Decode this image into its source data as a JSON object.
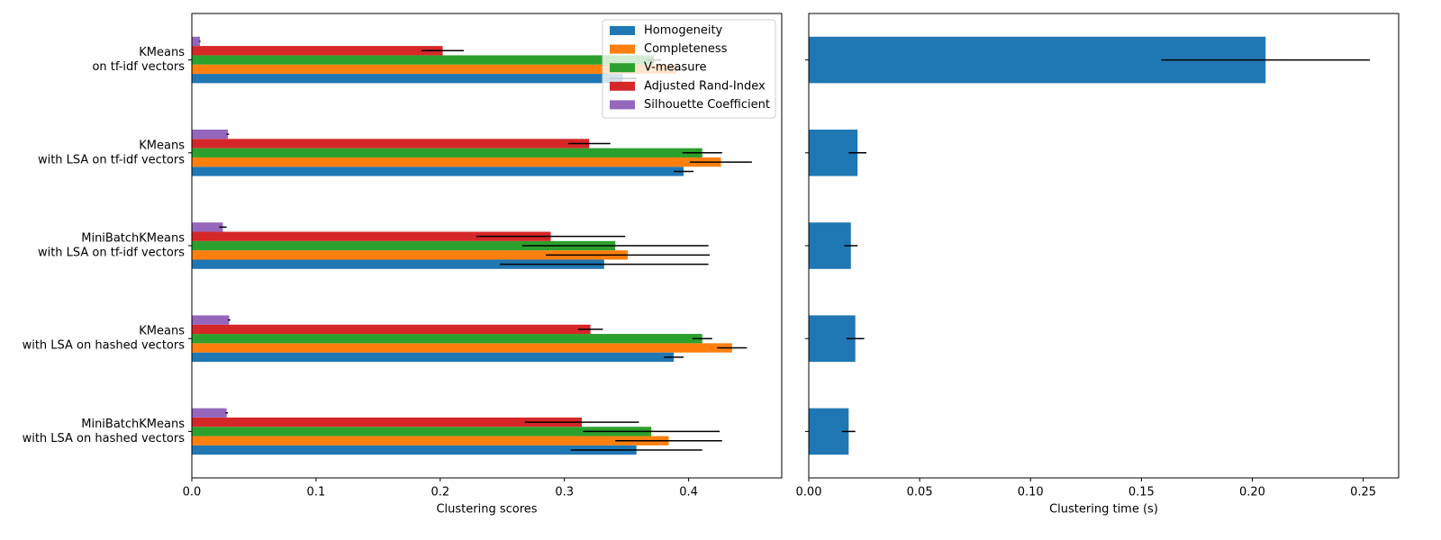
{
  "chart_data": [
    {
      "type": "barh",
      "categories": [
        [
          "KMeans",
          "on tf-idf vectors"
        ],
        [
          "KMeans",
          "with LSA on tf-idf vectors"
        ],
        [
          "MiniBatchKMeans",
          "with LSA on tf-idf vectors"
        ],
        [
          "KMeans",
          "with LSA on hashed vectors"
        ],
        [
          "MiniBatchKMeans",
          "with LSA on hashed vectors"
        ]
      ],
      "series": [
        {
          "name": "Homogeneity",
          "color": "#1f77b4",
          "values": [
            0.347,
            0.396,
            0.332,
            0.388,
            0.358
          ],
          "errors": [
            0.011,
            0.008,
            0.084,
            0.008,
            0.053
          ]
        },
        {
          "name": "Completeness",
          "color": "#ff7f0e",
          "values": [
            0.39,
            0.426,
            0.351,
            0.435,
            0.384
          ],
          "errors": [
            0.008,
            0.025,
            0.066,
            0.012,
            0.043
          ]
        },
        {
          "name": "V-measure",
          "color": "#2ca02c",
          "values": [
            0.372,
            0.411,
            0.341,
            0.411,
            0.37
          ],
          "errors": [
            0.006,
            0.016,
            0.075,
            0.008,
            0.055
          ]
        },
        {
          "name": "Adjusted Rand-Index",
          "color": "#d62728",
          "values": [
            0.202,
            0.32,
            0.289,
            0.321,
            0.314
          ],
          "errors": [
            0.017,
            0.017,
            0.06,
            0.01,
            0.046
          ]
        },
        {
          "name": "Silhouette Coefficient",
          "color": "#9467bd",
          "values": [
            0.0065,
            0.029,
            0.025,
            0.03,
            0.028
          ],
          "errors": [
            0.0005,
            0.001,
            0.003,
            0.001,
            0.001
          ]
        }
      ],
      "xlabel": "Clustering scores",
      "xlim": [
        0,
        0.475
      ],
      "xticks": [
        {
          "value": 0,
          "label": "0.0"
        },
        {
          "value": 0.1,
          "label": "0.1"
        },
        {
          "value": 0.2,
          "label": "0.2"
        },
        {
          "value": 0.3,
          "label": "0.3"
        },
        {
          "value": 0.4,
          "label": "0.4"
        }
      ],
      "legend": "upper right"
    },
    {
      "type": "barh",
      "series": [
        {
          "color": "#1f77b4",
          "values": [
            0.206,
            0.022,
            0.019,
            0.021,
            0.018
          ],
          "errors": [
            0.047,
            0.004,
            0.003,
            0.004,
            0.003
          ]
        }
      ],
      "xlabel": "Clustering time (s)",
      "xlim": [
        0,
        0.266
      ],
      "xticks": [
        {
          "value": 0,
          "label": "0.00"
        },
        {
          "value": 0.05,
          "label": "0.05"
        },
        {
          "value": 0.1,
          "label": "0.10"
        },
        {
          "value": 0.15,
          "label": "0.15"
        },
        {
          "value": 0.2,
          "label": "0.20"
        },
        {
          "value": 0.25,
          "label": "0.25"
        }
      ]
    }
  ]
}
